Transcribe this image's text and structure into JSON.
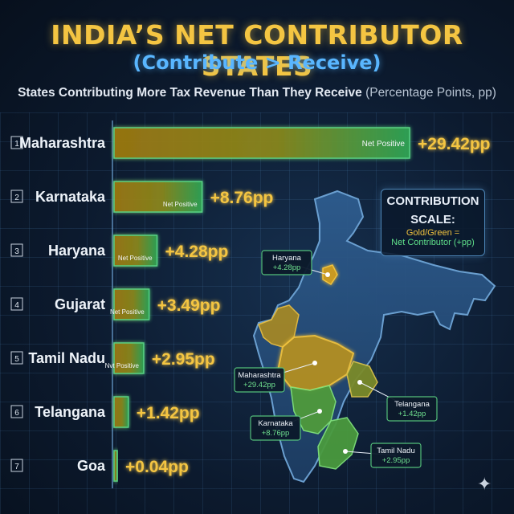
{
  "header": {
    "title": "INDIA’S NET CONTRIBUTOR STATES",
    "subtitle": "(Contribute > Receive)",
    "caption": "States Contributing More Tax Revenue Than They Receive",
    "caption_unit": "(Percentage Points, pp)"
  },
  "legend": {
    "title_line1": "CONTRIBUTION",
    "title_line2": "SCALE:",
    "gold_text": "Gold/Green =",
    "green_text": "Net Contributor (+pp)"
  },
  "colors": {
    "gold": "#f0c23e",
    "green": "#3fd07a",
    "title": "#f4c542",
    "blue": "#59b6ff"
  },
  "chart_data": {
    "type": "bar",
    "orientation": "horizontal",
    "categories": [
      "Maharashtra",
      "Karnataka",
      "Haryana",
      "Gujarat",
      "Tamil Nadu",
      "Telangana",
      "Goa"
    ],
    "ranks": [
      "1",
      "2",
      "3",
      "4",
      "5",
      "6",
      "7"
    ],
    "values": [
      29.42,
      8.76,
      4.28,
      3.49,
      2.95,
      1.42,
      0.04
    ],
    "value_labels": [
      "+29.42pp",
      "+8.76pp",
      "+4.28pp",
      "+3.49pp",
      "+2.95pp",
      "+1.42pp",
      "+0.04pp"
    ],
    "bar_inner_labels": [
      "Net Positive",
      "Net Positive",
      "Net Positive",
      "Net Positive",
      "Nvt Positive",
      "",
      ""
    ],
    "unit": "pp",
    "xlim": [
      0,
      29.42
    ],
    "map_labels": [
      {
        "name": "Haryana",
        "value": "+4.28pp"
      },
      {
        "name": "Maharashtra",
        "value": "+29.42pp"
      },
      {
        "name": "Telangana",
        "value": "+1.42pp"
      },
      {
        "name": "Karnataka",
        "value": "+8.76pp"
      },
      {
        "name": "Tamil Nadu",
        "value": "+2.95pp"
      }
    ]
  }
}
